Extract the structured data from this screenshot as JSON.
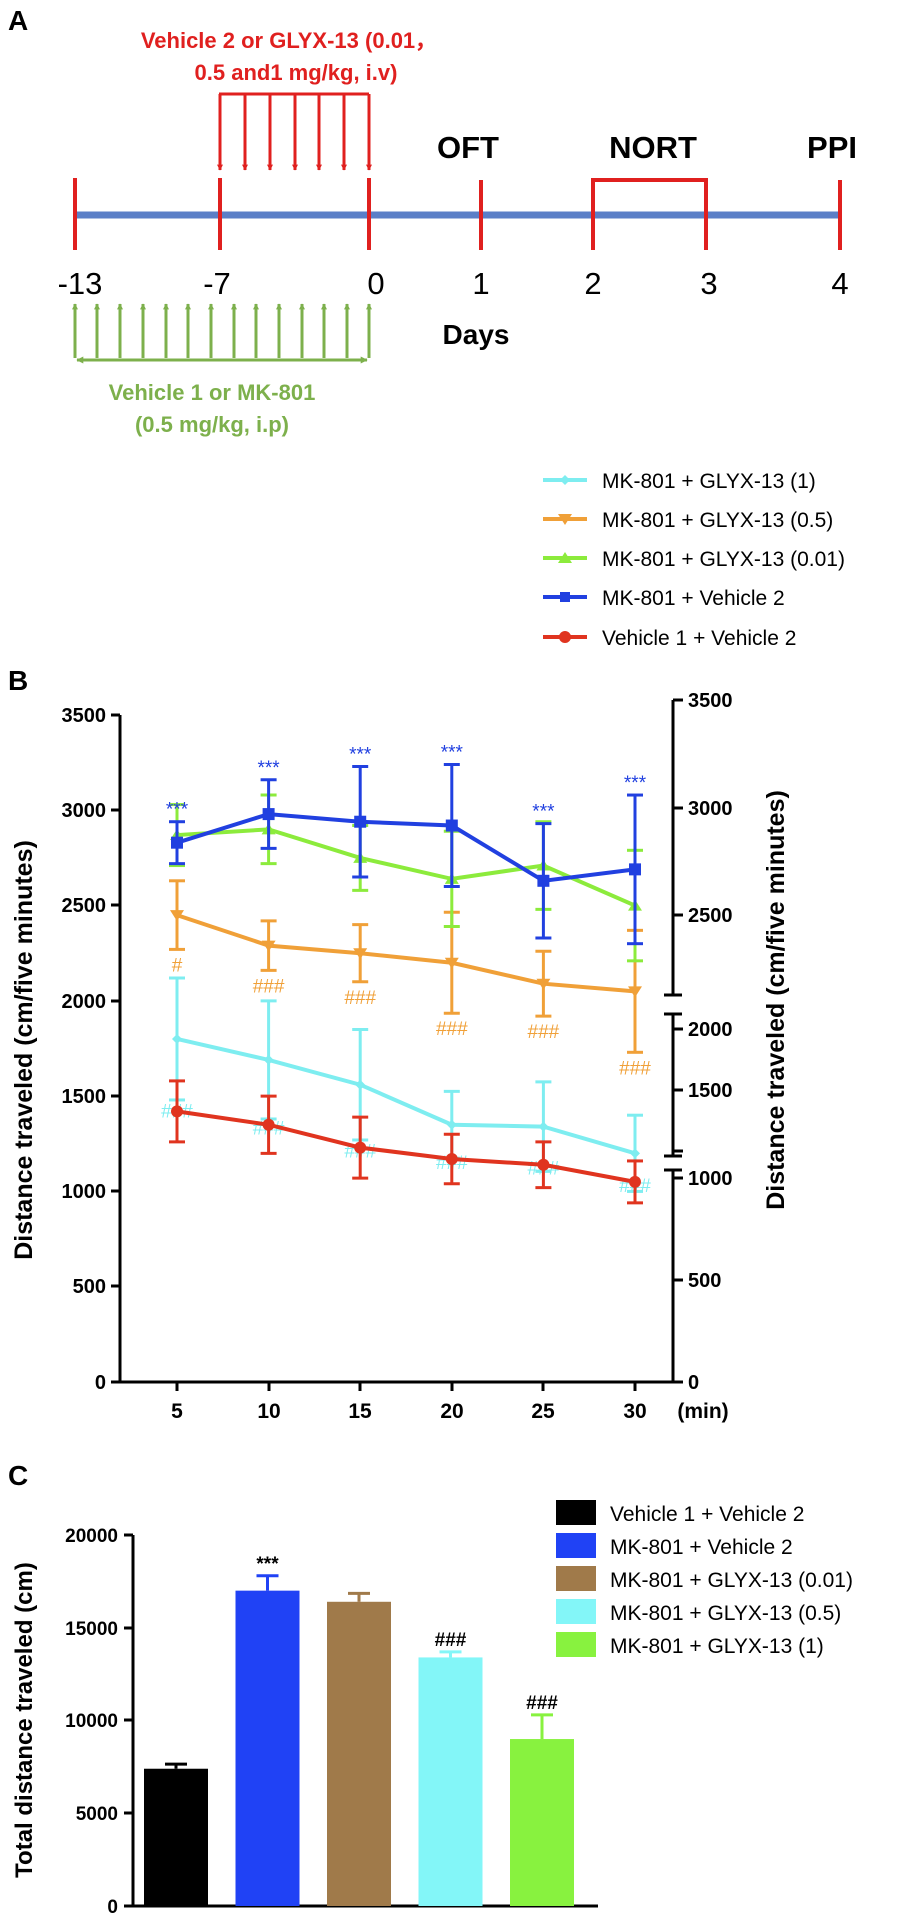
{
  "panelA": {
    "label": "A",
    "treat2_line1": "Vehicle 2 or GLYX-13 (0.01，",
    "treat2_line2": "0.5 and1 mg/kg, i.v)",
    "treat1_line1": "Vehicle 1 or MK-801",
    "treat1_line2": "(0.5 mg/kg, i.p)",
    "days_label": "Days",
    "ticks": [
      "-13",
      "-7",
      "0",
      "1",
      "2",
      "3",
      "4"
    ],
    "tests": [
      "OFT",
      "NORT",
      "PPI"
    ],
    "colors": {
      "axis": "#5B7FC7",
      "red": "#E0201F",
      "green": "#7DB04C"
    }
  },
  "panelB": {
    "label": "B",
    "legend": [
      "MK-801 + GLYX-13 (1)",
      "MK-801 + GLYX-13 (0.5)",
      "MK-801 + GLYX-13 (0.01)",
      "MK-801 + Vehicle 2",
      "Vehicle 1 + Vehicle 2"
    ],
    "left_ticks": [
      "0",
      "500",
      "1000",
      "1500",
      "2000",
      "2500",
      "3000",
      "3500"
    ],
    "right_ticks": [
      "0",
      "500",
      "1000",
      "1500",
      "2000",
      "2500",
      "3000",
      "3500"
    ],
    "x_ticks": [
      "5",
      "10",
      "15",
      "20",
      "25",
      "30"
    ],
    "x_unit": "(min)"
  },
  "panelC": {
    "label": "C",
    "legend": [
      "Vehicle 1 + Vehicle 2",
      "MK-801 + Vehicle 2",
      "MK-801 + GLYX-13 (0.01)",
      "MK-801 + GLYX-13 (0.5)",
      "MK-801 + GLYX-13 (1)"
    ],
    "y_ticks": [
      "0",
      "5000",
      "10000",
      "15000",
      "20000"
    ]
  },
  "chart_data": [
    {
      "type": "line",
      "ylabel": "Distance traveled (cm/five minutes)",
      "ylabel_right": "Distance traveled (cm/five minutes)",
      "xlabel": "(min)",
      "x": [
        5,
        10,
        15,
        20,
        25,
        30
      ],
      "ylim": [
        0,
        3500
      ],
      "series": [
        {
          "name": "MK-801 + GLYX-13 (1)",
          "color": "#7EEDF0",
          "values": [
            1800,
            1690,
            1560,
            1350,
            1340,
            1200
          ],
          "err": [
            320,
            310,
            290,
            175,
            235,
            200
          ],
          "sig": [
            "###",
            "###",
            "###",
            "###",
            "###",
            "###"
          ]
        },
        {
          "name": "MK-801 + GLYX-13 (0.5)",
          "color": "#F0A038",
          "values": [
            2450,
            2290,
            2250,
            2200,
            2090,
            2050
          ],
          "err": [
            180,
            130,
            150,
            265,
            170,
            320
          ],
          "sig": [
            "#",
            "###",
            "###",
            "###",
            "###",
            "###"
          ]
        },
        {
          "name": "MK-801 + GLYX-13 (0.01)",
          "color": "#8CEB3C",
          "values": [
            2870,
            2900,
            2750,
            2640,
            2710,
            2500
          ],
          "err": [
            160,
            180,
            170,
            250,
            230,
            290
          ],
          "sig": []
        },
        {
          "name": "MK-801 + Vehicle 2",
          "color": "#2140E0",
          "values": [
            2830,
            2980,
            2940,
            2920,
            2630,
            2690
          ],
          "err": [
            110,
            180,
            290,
            320,
            300,
            390
          ],
          "sig": [
            "***",
            "***",
            "***",
            "***",
            "***",
            "***"
          ]
        },
        {
          "name": "Vehicle 1 + Vehicle 2",
          "color": "#E0341F",
          "values": [
            1420,
            1350,
            1230,
            1170,
            1140,
            1050
          ],
          "err": [
            160,
            150,
            160,
            130,
            120,
            110
          ],
          "sig": []
        }
      ]
    },
    {
      "type": "bar",
      "ylabel": "Total distance traveled (cm)",
      "ylim": [
        0,
        20000
      ],
      "categories": [
        "Vehicle 1 + Vehicle 2",
        "MK-801 + Vehicle 2",
        "MK-801 + GLYX-13 (0.01)",
        "MK-801 + GLYX-13 (0.5)",
        "MK-801 + GLYX-13 (1)"
      ],
      "values": [
        7400,
        17000,
        16400,
        13400,
        9000
      ],
      "err": [
        250,
        800,
        450,
        300,
        1300
      ],
      "colors": [
        "#000000",
        "#2042F5",
        "#A07A4A",
        "#83F6F8",
        "#88F23F"
      ],
      "sig": [
        "",
        "***",
        "",
        "###",
        "###"
      ]
    }
  ]
}
